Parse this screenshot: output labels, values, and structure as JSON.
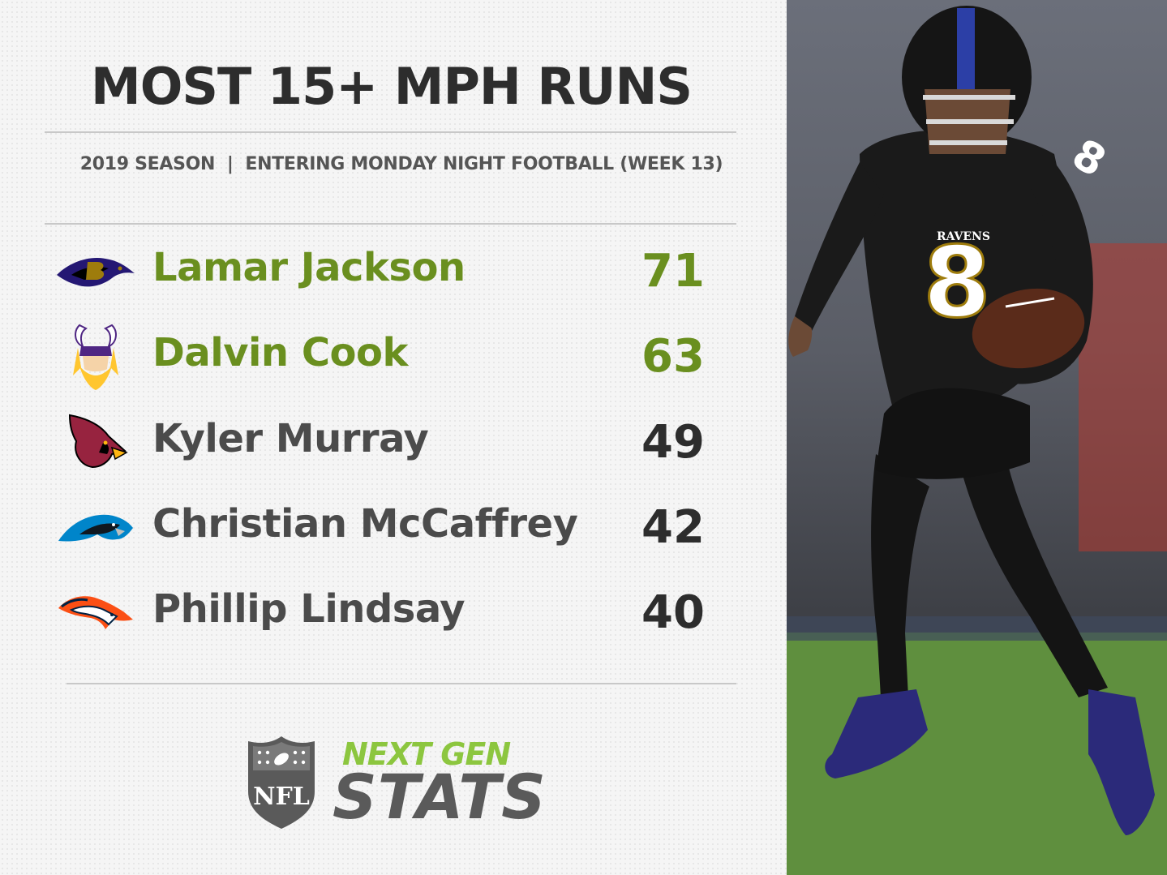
{
  "title": "MOST 15+ MPH RUNS",
  "subtitle": "2019 SEASON  |  ENTERING MONDAY NIGHT FOOTBALL (WEEK 13)",
  "colors": {
    "highlight": "#6a8f1f",
    "text": "#4b4b4b",
    "number": "#2d2d2d",
    "brand_green": "#8cc63f"
  },
  "players": [
    {
      "name": "Lamar Jackson",
      "count": "71",
      "team_icon": "ravens-logo-icon",
      "highlight": true
    },
    {
      "name": "Dalvin Cook",
      "count": "63",
      "team_icon": "vikings-logo-icon",
      "highlight": true
    },
    {
      "name": "Kyler Murray",
      "count": "49",
      "team_icon": "cardinals-logo-icon",
      "highlight": false
    },
    {
      "name": "Christian McCaffrey",
      "count": "42",
      "team_icon": "panthers-logo-icon",
      "highlight": false
    },
    {
      "name": "Phillip Lindsay",
      "count": "40",
      "team_icon": "broncos-logo-icon",
      "highlight": false
    }
  ],
  "brand": {
    "top": "NEXT GEN",
    "bottom": "STATS",
    "shield_text": "NFL"
  },
  "photo": {
    "jersey_number": "8",
    "team_text": "RAVENS"
  }
}
